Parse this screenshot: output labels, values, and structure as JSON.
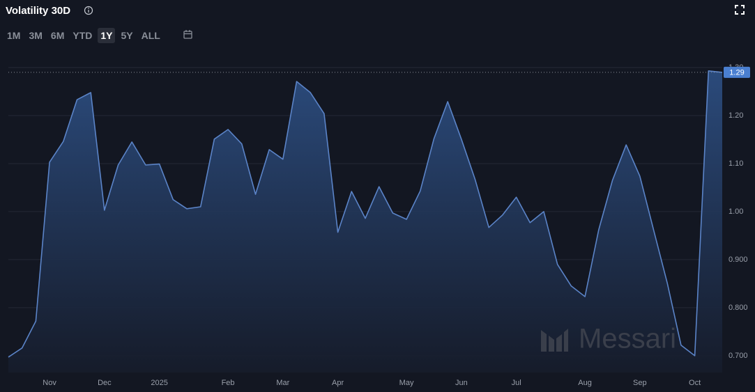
{
  "title": "Volatility 30D",
  "range_buttons": [
    "1M",
    "3M",
    "6M",
    "YTD",
    "1Y",
    "5Y",
    "ALL"
  ],
  "selected_range": "1Y",
  "watermark": "Messari",
  "chart_data": {
    "type": "area",
    "categories": [
      null,
      null,
      null,
      "Nov",
      null,
      null,
      null,
      "Dec",
      null,
      null,
      null,
      "2025",
      null,
      null,
      null,
      null,
      "Feb",
      null,
      null,
      null,
      "Mar",
      null,
      null,
      null,
      "Apr",
      null,
      null,
      null,
      null,
      "May",
      null,
      null,
      null,
      "Jun",
      null,
      null,
      null,
      "Jul",
      null,
      null,
      null,
      null,
      "Aug",
      null,
      null,
      null,
      "Sep",
      null,
      null,
      null,
      "Oct",
      null,
      null
    ],
    "series": [
      {
        "color": "#5b84c8",
        "values": [
          0.697,
          0.716,
          0.772,
          1.103,
          1.146,
          1.233,
          1.248,
          1.003,
          1.097,
          1.145,
          1.097,
          1.099,
          1.025,
          1.006,
          1.01,
          1.151,
          1.171,
          1.141,
          1.036,
          1.129,
          1.109,
          1.271,
          1.248,
          1.204,
          0.957,
          1.042,
          0.986,
          1.052,
          0.997,
          0.984,
          1.043,
          1.152,
          1.229,
          1.151,
          1.067,
          0.967,
          0.993,
          1.03,
          0.977,
          1.0,
          0.89,
          0.845,
          0.823,
          0.962,
          1.065,
          1.139,
          1.074,
          0.962,
          0.851,
          0.722,
          0.7,
          1.293,
          1.29
        ]
      }
    ],
    "ylim": [
      0.665,
      1.3
    ],
    "yticks": [
      {
        "value": 0.7,
        "label": "0.700"
      },
      {
        "value": 0.8,
        "label": "0.800"
      },
      {
        "value": 0.9,
        "label": "0.900"
      },
      {
        "value": 1.0,
        "label": "1.00"
      },
      {
        "value": 1.1,
        "label": "1.10"
      },
      {
        "value": 1.2,
        "label": "1.20"
      },
      {
        "value": 1.3,
        "label": "1.30"
      }
    ],
    "grid": true
  }
}
